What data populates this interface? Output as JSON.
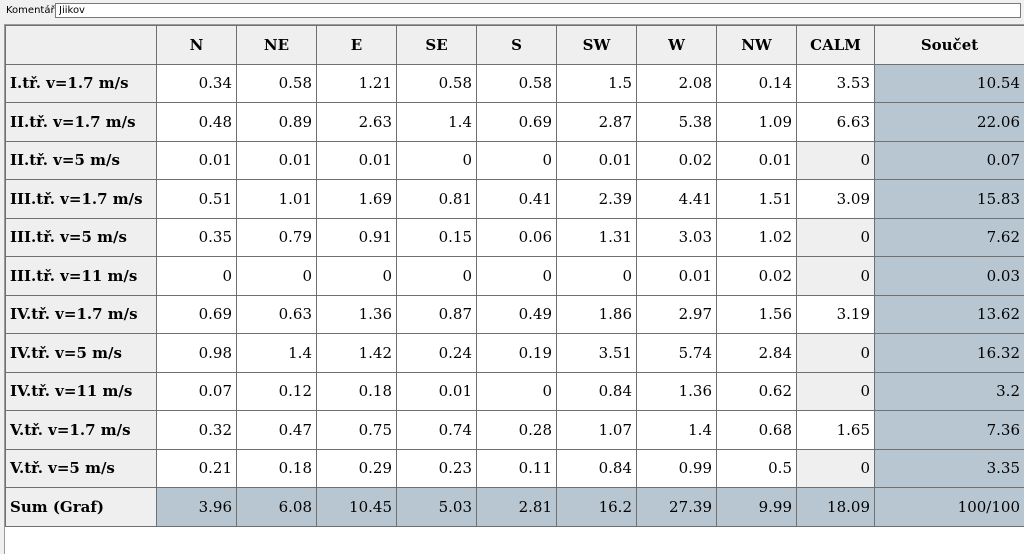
{
  "comment": {
    "label": "Komentář:",
    "value": "Jiikov"
  },
  "table": {
    "columns": [
      "N",
      "NE",
      "E",
      "SE",
      "S",
      "SW",
      "W",
      "NW",
      "CALM",
      "Součet"
    ],
    "rows": [
      {
        "label": "I.tř. v=1.7 m/s",
        "values": [
          "0.34",
          "0.58",
          "1.21",
          "0.58",
          "0.58",
          "1.5",
          "2.08",
          "0.14",
          "3.53",
          "10.54"
        ]
      },
      {
        "label": "II.tř. v=1.7 m/s",
        "values": [
          "0.48",
          "0.89",
          "2.63",
          "1.4",
          "0.69",
          "2.87",
          "5.38",
          "1.09",
          "6.63",
          "22.06"
        ]
      },
      {
        "label": "II.tř. v=5 m/s",
        "values": [
          "0.01",
          "0.01",
          "0.01",
          "0",
          "0",
          "0.01",
          "0.02",
          "0.01",
          "0",
          "0.07"
        ]
      },
      {
        "label": "III.tř. v=1.7 m/s",
        "values": [
          "0.51",
          "1.01",
          "1.69",
          "0.81",
          "0.41",
          "2.39",
          "4.41",
          "1.51",
          "3.09",
          "15.83"
        ]
      },
      {
        "label": "III.tř. v=5 m/s",
        "values": [
          "0.35",
          "0.79",
          "0.91",
          "0.15",
          "0.06",
          "1.31",
          "3.03",
          "1.02",
          "0",
          "7.62"
        ]
      },
      {
        "label": "III.tř. v=11 m/s",
        "values": [
          "0",
          "0",
          "0",
          "0",
          "0",
          "0",
          "0.01",
          "0.02",
          "0",
          "0.03"
        ]
      },
      {
        "label": "IV.tř. v=1.7 m/s",
        "values": [
          "0.69",
          "0.63",
          "1.36",
          "0.87",
          "0.49",
          "1.86",
          "2.97",
          "1.56",
          "3.19",
          "13.62"
        ]
      },
      {
        "label": "IV.tř. v=5 m/s",
        "values": [
          "0.98",
          "1.4",
          "1.42",
          "0.24",
          "0.19",
          "3.51",
          "5.74",
          "2.84",
          "0",
          "16.32"
        ]
      },
      {
        "label": "IV.tř. v=11 m/s",
        "values": [
          "0.07",
          "0.12",
          "0.18",
          "0.01",
          "0",
          "0.84",
          "1.36",
          "0.62",
          "0",
          "3.2"
        ]
      },
      {
        "label": "V.tř. v=1.7 m/s",
        "values": [
          "0.32",
          "0.47",
          "0.75",
          "0.74",
          "0.28",
          "1.07",
          "1.4",
          "0.68",
          "1.65",
          "7.36"
        ]
      },
      {
        "label": "V.tř. v=5 m/s",
        "values": [
          "0.21",
          "0.18",
          "0.29",
          "0.23",
          "0.11",
          "0.84",
          "0.99",
          "0.5",
          "0",
          "3.35"
        ]
      }
    ],
    "sum_row": {
      "label": "Sum (Graf)",
      "values": [
        "3.96",
        "6.08",
        "10.45",
        "5.03",
        "2.81",
        "16.2",
        "27.39",
        "9.99",
        "18.09",
        "100/100"
      ]
    }
  },
  "colors": {
    "header_bg": "#efefef",
    "sum_bg": "#b8c6d1",
    "cell_bg": "#ffffff",
    "grid_line": "#707070"
  }
}
